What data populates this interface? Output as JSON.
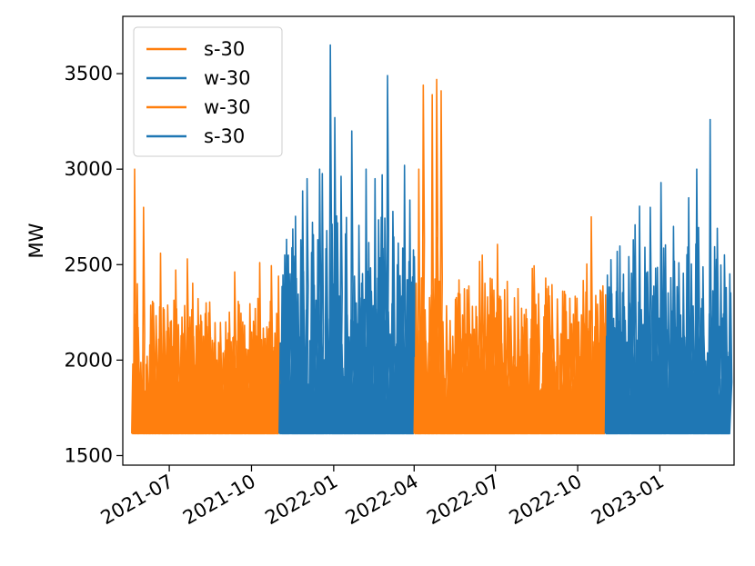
{
  "chart_data": {
    "type": "line",
    "title": "",
    "xlabel": "",
    "ylabel": "MW",
    "ylim": [
      1450,
      3800
    ],
    "xlim": [
      "2021-05-10",
      "2023-03-25"
    ],
    "grid": false,
    "legend": {
      "placement": "top-left",
      "entries": [
        {
          "label": "s-30",
          "color": "#ff7f0e"
        },
        {
          "label": "w-30",
          "color": "#1f77b4"
        },
        {
          "label": "w-30",
          "color": "#ff7f0e"
        },
        {
          "label": "s-30",
          "color": "#1f77b4"
        }
      ]
    },
    "y_ticks": [
      {
        "value": 1500,
        "label": "1500"
      },
      {
        "value": 2000,
        "label": "2000"
      },
      {
        "value": 2500,
        "label": "2500"
      },
      {
        "value": 3000,
        "label": "3000"
      },
      {
        "value": 3500,
        "label": "3500"
      }
    ],
    "x_ticks": [
      {
        "value": "2021-07-01",
        "label": "2021-07"
      },
      {
        "value": "2021-10-01",
        "label": "2021-10"
      },
      {
        "value": "2022-01-01",
        "label": "2022-01"
      },
      {
        "value": "2022-04-01",
        "label": "2022-04"
      },
      {
        "value": "2022-07-01",
        "label": "2022-07"
      },
      {
        "value": "2022-10-01",
        "label": "2022-10"
      },
      {
        "value": "2023-01-01",
        "label": "2023-01"
      }
    ],
    "series": [
      {
        "name": "s-30",
        "color": "#ff7f0e",
        "start": "2021-05-20",
        "end": "2021-10-31",
        "baseline": 1615,
        "peaks": [
          [
            "2021-05-22",
            3000
          ],
          [
            "2021-05-25",
            2400
          ],
          [
            "2021-06-01",
            2800
          ],
          [
            "2021-06-05",
            2020
          ],
          [
            "2021-06-20",
            2560
          ],
          [
            "2021-07-01",
            2200
          ],
          [
            "2021-07-20",
            2530
          ],
          [
            "2021-08-10",
            2300
          ],
          [
            "2021-09-01",
            2200
          ],
          [
            "2021-09-20",
            2200
          ],
          [
            "2021-10-20",
            2200
          ],
          [
            "2021-10-30",
            2440
          ]
        ]
      },
      {
        "name": "w-30",
        "color": "#1f77b4",
        "start": "2021-11-01",
        "end": "2022-03-31",
        "baseline": 1615,
        "peaks": [
          [
            "2021-11-10",
            2550
          ],
          [
            "2021-12-01",
            2950
          ],
          [
            "2021-12-15",
            3000
          ],
          [
            "2021-12-27",
            3650
          ],
          [
            "2022-01-01",
            3270
          ],
          [
            "2022-01-20",
            3200
          ],
          [
            "2022-02-05",
            3000
          ],
          [
            "2022-02-15",
            2950
          ],
          [
            "2022-03-01",
            3490
          ],
          [
            "2022-03-20",
            3020
          ]
        ]
      },
      {
        "name": "w-30",
        "color": "#ff7f0e",
        "start": "2022-04-01",
        "end": "2022-10-31",
        "baseline": 1615,
        "peaks": [
          [
            "2022-04-05",
            3000
          ],
          [
            "2022-04-10",
            3440
          ],
          [
            "2022-04-20",
            3390
          ],
          [
            "2022-04-25",
            3470
          ],
          [
            "2022-04-30",
            3410
          ],
          [
            "2022-05-20",
            2420
          ],
          [
            "2022-06-15",
            2550
          ],
          [
            "2022-07-15",
            2220
          ],
          [
            "2022-08-10",
            2480
          ],
          [
            "2022-08-25",
            2430
          ],
          [
            "2022-09-15",
            2360
          ],
          [
            "2022-10-01",
            2200
          ],
          [
            "2022-10-15",
            2750
          ]
        ]
      },
      {
        "name": "s-30",
        "color": "#1f77b4",
        "start": "2022-11-01",
        "end": "2023-03-20",
        "baseline": 1615,
        "peaks": [
          [
            "2022-11-20",
            2450
          ],
          [
            "2022-12-01",
            2630
          ],
          [
            "2022-12-20",
            2800
          ],
          [
            "2023-01-01",
            2930
          ],
          [
            "2023-01-15",
            2700
          ],
          [
            "2023-02-01",
            2850
          ],
          [
            "2023-02-10",
            3000
          ],
          [
            "2023-02-25",
            3260
          ],
          [
            "2023-03-05",
            2690
          ],
          [
            "2023-03-15",
            2380
          ]
        ]
      }
    ]
  }
}
